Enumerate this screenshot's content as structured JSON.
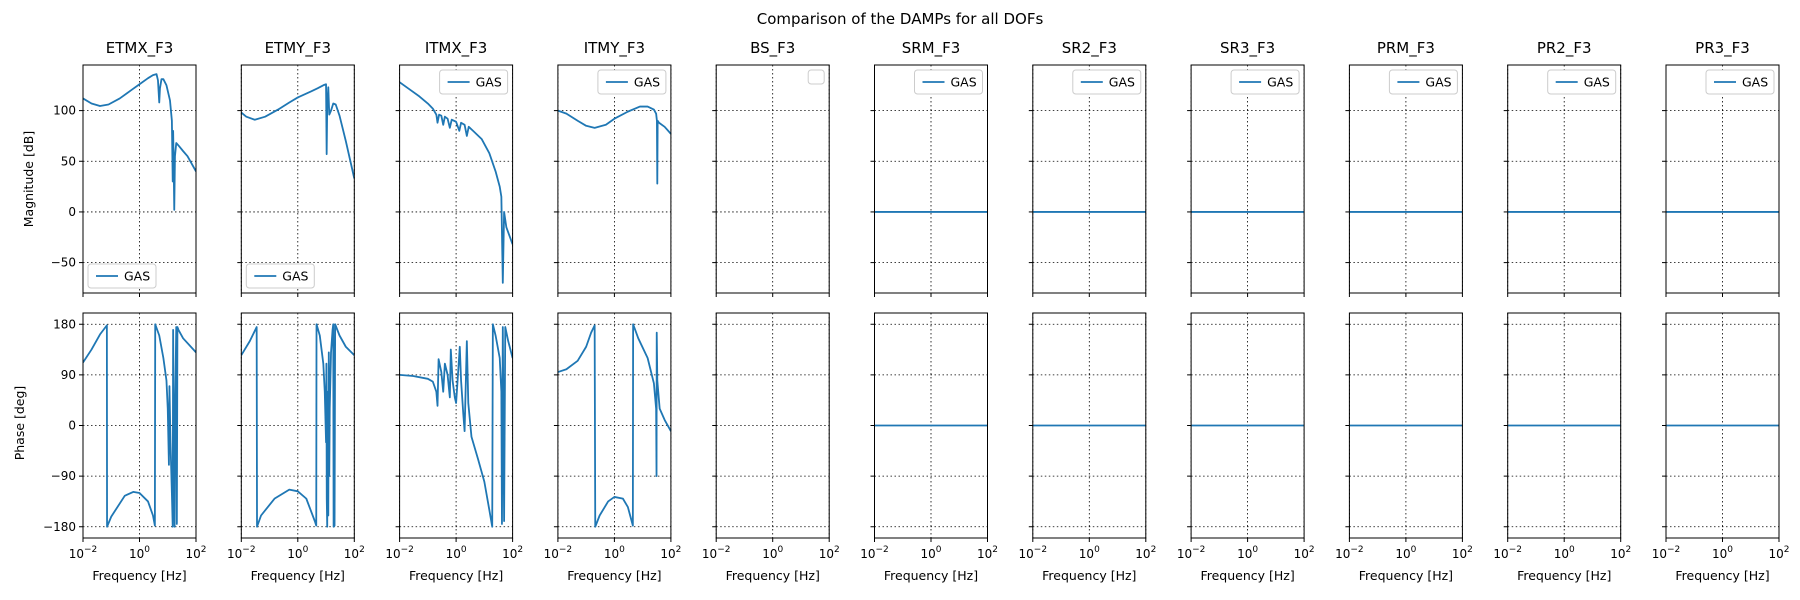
{
  "figure": {
    "suptitle": "Comparison of the DAMPs for all DOFs",
    "line_color": "#1f77b4"
  },
  "chart_data": {
    "type": "line",
    "grid": true,
    "xlabel": "Frequency [Hz]",
    "xscale": "log",
    "xlim": [
      0.01,
      100
    ],
    "xticks": [
      0.01,
      1,
      100
    ],
    "xtick_labels": [
      {
        "base": "10",
        "exp": "−2"
      },
      {
        "base": "10",
        "exp": "0"
      },
      {
        "base": "10",
        "exp": "2"
      }
    ],
    "magnitude": {
      "ylabel": "Magnitude [dB]",
      "ylim": [
        -80,
        145
      ],
      "yticks": [
        -50,
        0,
        50,
        100
      ],
      "ytick_labels": [
        "−50",
        "0",
        "50",
        "100"
      ]
    },
    "phase": {
      "ylabel": "Phase [deg]",
      "ylim": [
        -200,
        200
      ],
      "yticks": [
        -180,
        -90,
        0,
        90,
        180
      ],
      "ytick_labels": [
        "−180",
        "−90",
        "0",
        "90",
        "180"
      ]
    },
    "panels": [
      {
        "title": "ETMX_F3",
        "legend": "GAS",
        "legend_loc": "lower-left",
        "magnitude": [
          [
            0.01,
            112
          ],
          [
            0.02,
            107
          ],
          [
            0.04,
            104.5
          ],
          [
            0.08,
            106
          ],
          [
            0.2,
            112
          ],
          [
            0.5,
            120
          ],
          [
            1,
            126
          ],
          [
            2,
            132
          ],
          [
            3,
            135
          ],
          [
            4,
            136
          ],
          [
            4.5,
            130
          ],
          [
            5,
            108
          ],
          [
            5.3,
            122
          ],
          [
            6,
            131
          ],
          [
            7,
            131
          ],
          [
            9,
            125
          ],
          [
            12,
            110
          ],
          [
            14,
            90
          ],
          [
            15,
            30
          ],
          [
            15.5,
            80
          ],
          [
            16,
            58
          ],
          [
            17,
            2
          ],
          [
            18,
            55
          ],
          [
            20,
            68
          ],
          [
            25,
            65
          ],
          [
            35,
            60
          ],
          [
            50,
            55
          ],
          [
            100,
            40
          ]
        ],
        "phase": [
          [
            0.01,
            112
          ],
          [
            0.02,
            135
          ],
          [
            0.04,
            162
          ],
          [
            0.07,
            178
          ],
          [
            0.071,
            -180
          ],
          [
            0.1,
            -162
          ],
          [
            0.3,
            -125
          ],
          [
            0.6,
            -118
          ],
          [
            1,
            -120
          ],
          [
            2,
            -135
          ],
          [
            3,
            -160
          ],
          [
            3.5,
            -178
          ],
          [
            3.6,
            180
          ],
          [
            5,
            160
          ],
          [
            7,
            120
          ],
          [
            9,
            80
          ],
          [
            10,
            30
          ],
          [
            11,
            -70
          ],
          [
            11.5,
            70
          ],
          [
            12.5,
            -30
          ],
          [
            14,
            -120
          ],
          [
            15,
            -180
          ],
          [
            15.5,
            170
          ],
          [
            16.5,
            -50
          ],
          [
            17.5,
            -180
          ],
          [
            18.5,
            50
          ],
          [
            20,
            175
          ],
          [
            21,
            -175
          ],
          [
            22,
            175
          ],
          [
            24,
            170
          ],
          [
            35,
            155
          ],
          [
            100,
            130
          ]
        ]
      },
      {
        "title": "ETMY_F3",
        "legend": "GAS",
        "legend_loc": "lower-left",
        "magnitude": [
          [
            0.01,
            98
          ],
          [
            0.015,
            94
          ],
          [
            0.03,
            91
          ],
          [
            0.07,
            94
          ],
          [
            0.2,
            101
          ],
          [
            0.5,
            108
          ],
          [
            1,
            113
          ],
          [
            3,
            119
          ],
          [
            5,
            122
          ],
          [
            8,
            125
          ],
          [
            10,
            126
          ],
          [
            10.5,
            57
          ],
          [
            11,
            105
          ],
          [
            12,
            123
          ],
          [
            13,
            96
          ],
          [
            15,
            100
          ],
          [
            18,
            107
          ],
          [
            22,
            106
          ],
          [
            30,
            95
          ],
          [
            50,
            70
          ],
          [
            100,
            33
          ]
        ],
        "phase": [
          [
            0.01,
            125
          ],
          [
            0.02,
            150
          ],
          [
            0.035,
            175
          ],
          [
            0.036,
            -180
          ],
          [
            0.05,
            -160
          ],
          [
            0.15,
            -130
          ],
          [
            0.5,
            -114
          ],
          [
            1,
            -117
          ],
          [
            2,
            -130
          ],
          [
            4,
            -170
          ],
          [
            4.5,
            -178
          ],
          [
            4.6,
            180
          ],
          [
            6,
            160
          ],
          [
            8,
            110
          ],
          [
            9,
            60
          ],
          [
            10,
            -30
          ],
          [
            10.3,
            110
          ],
          [
            10.6,
            -130
          ],
          [
            11,
            -180
          ],
          [
            11.5,
            60
          ],
          [
            12,
            -160
          ],
          [
            12.5,
            130
          ],
          [
            13,
            -90
          ],
          [
            13.5,
            30
          ],
          [
            15,
            130
          ],
          [
            17,
            170
          ],
          [
            18,
            180
          ],
          [
            18.5,
            -180
          ],
          [
            20,
            -178
          ],
          [
            21,
            180
          ],
          [
            30,
            160
          ],
          [
            50,
            140
          ],
          [
            100,
            125
          ]
        ]
      },
      {
        "title": "ITMX_F3",
        "legend": "GAS",
        "legend_loc": "upper-right",
        "magnitude": [
          [
            0.01,
            128
          ],
          [
            0.02,
            122
          ],
          [
            0.05,
            114
          ],
          [
            0.1,
            107
          ],
          [
            0.15,
            102
          ],
          [
            0.2,
            96
          ],
          [
            0.22,
            88
          ],
          [
            0.25,
            96
          ],
          [
            0.3,
            95
          ],
          [
            0.35,
            86
          ],
          [
            0.4,
            94
          ],
          [
            0.5,
            92
          ],
          [
            0.6,
            83
          ],
          [
            0.7,
            91
          ],
          [
            1,
            89
          ],
          [
            1.3,
            80
          ],
          [
            1.5,
            88
          ],
          [
            2,
            86
          ],
          [
            2.4,
            75
          ],
          [
            2.8,
            84
          ],
          [
            4,
            80
          ],
          [
            8,
            72
          ],
          [
            15,
            58
          ],
          [
            25,
            40
          ],
          [
            35,
            25
          ],
          [
            40,
            15
          ],
          [
            45,
            -70
          ],
          [
            50,
            0
          ],
          [
            60,
            -15
          ],
          [
            100,
            -32
          ]
        ],
        "phase": [
          [
            0.01,
            90
          ],
          [
            0.03,
            88
          ],
          [
            0.1,
            83
          ],
          [
            0.15,
            78
          ],
          [
            0.2,
            60
          ],
          [
            0.22,
            35
          ],
          [
            0.24,
            118
          ],
          [
            0.3,
            95
          ],
          [
            0.35,
            60
          ],
          [
            0.4,
            110
          ],
          [
            0.5,
            90
          ],
          [
            0.6,
            50
          ],
          [
            0.65,
            135
          ],
          [
            0.75,
            80
          ],
          [
            0.9,
            50
          ],
          [
            1,
            40
          ],
          [
            1.2,
            100
          ],
          [
            1.35,
            140
          ],
          [
            1.5,
            80
          ],
          [
            1.8,
            20
          ],
          [
            2,
            -10
          ],
          [
            2.4,
            150
          ],
          [
            2.7,
            40
          ],
          [
            3.5,
            -20
          ],
          [
            6,
            -60
          ],
          [
            10,
            -100
          ],
          [
            15,
            -150
          ],
          [
            19,
            -180
          ],
          [
            20,
            180
          ],
          [
            25,
            160
          ],
          [
            35,
            120
          ],
          [
            40,
            60
          ],
          [
            42,
            -175
          ],
          [
            45,
            175
          ],
          [
            50,
            -170
          ],
          [
            55,
            175
          ],
          [
            70,
            150
          ],
          [
            100,
            120
          ]
        ]
      },
      {
        "title": "ITMY_F3",
        "legend": "GAS",
        "legend_loc": "upper-right",
        "magnitude": [
          [
            0.01,
            100
          ],
          [
            0.02,
            97
          ],
          [
            0.05,
            90
          ],
          [
            0.1,
            85
          ],
          [
            0.2,
            83
          ],
          [
            0.5,
            86
          ],
          [
            1,
            92
          ],
          [
            3,
            99
          ],
          [
            8,
            104
          ],
          [
            15,
            104
          ],
          [
            25,
            101
          ],
          [
            30,
            97
          ],
          [
            32,
            90
          ],
          [
            33,
            28
          ],
          [
            34,
            90
          ],
          [
            38,
            88
          ],
          [
            60,
            84
          ],
          [
            100,
            77
          ]
        ],
        "phase": [
          [
            0.01,
            95
          ],
          [
            0.02,
            100
          ],
          [
            0.05,
            115
          ],
          [
            0.1,
            140
          ],
          [
            0.15,
            165
          ],
          [
            0.2,
            178
          ],
          [
            0.21,
            -180
          ],
          [
            0.3,
            -160
          ],
          [
            0.6,
            -135
          ],
          [
            1,
            -127
          ],
          [
            2,
            -130
          ],
          [
            3,
            -145
          ],
          [
            4.5,
            -178
          ],
          [
            4.6,
            180
          ],
          [
            7,
            155
          ],
          [
            15,
            120
          ],
          [
            25,
            75
          ],
          [
            30,
            30
          ],
          [
            31,
            -90
          ],
          [
            31.5,
            165
          ],
          [
            33,
            80
          ],
          [
            40,
            30
          ],
          [
            60,
            10
          ],
          [
            100,
            -10
          ]
        ]
      },
      {
        "title": "BS_F3",
        "legend": "",
        "legend_loc": "upper-right",
        "magnitude": [],
        "phase": []
      },
      {
        "title": "SRM_F3",
        "legend": "GAS",
        "legend_loc": "upper-right",
        "magnitude": [
          [
            0.01,
            0
          ],
          [
            100,
            0
          ]
        ],
        "phase": [
          [
            0.01,
            0
          ],
          [
            100,
            0
          ]
        ]
      },
      {
        "title": "SR2_F3",
        "legend": "GAS",
        "legend_loc": "upper-right",
        "magnitude": [
          [
            0.01,
            0
          ],
          [
            100,
            0
          ]
        ],
        "phase": [
          [
            0.01,
            0
          ],
          [
            100,
            0
          ]
        ]
      },
      {
        "title": "SR3_F3",
        "legend": "GAS",
        "legend_loc": "upper-right",
        "magnitude": [
          [
            0.01,
            0
          ],
          [
            100,
            0
          ]
        ],
        "phase": [
          [
            0.01,
            0
          ],
          [
            100,
            0
          ]
        ]
      },
      {
        "title": "PRM_F3",
        "legend": "GAS",
        "legend_loc": "upper-right",
        "magnitude": [
          [
            0.01,
            0
          ],
          [
            100,
            0
          ]
        ],
        "phase": [
          [
            0.01,
            0
          ],
          [
            100,
            0
          ]
        ]
      },
      {
        "title": "PR2_F3",
        "legend": "GAS",
        "legend_loc": "upper-right",
        "magnitude": [
          [
            0.01,
            0
          ],
          [
            100,
            0
          ]
        ],
        "phase": [
          [
            0.01,
            0
          ],
          [
            100,
            0
          ]
        ]
      },
      {
        "title": "PR3_F3",
        "legend": "GAS",
        "legend_loc": "upper-right",
        "magnitude": [
          [
            0.01,
            0
          ],
          [
            100,
            0
          ]
        ],
        "phase": [
          [
            0.01,
            0
          ],
          [
            100,
            0
          ]
        ]
      }
    ]
  }
}
